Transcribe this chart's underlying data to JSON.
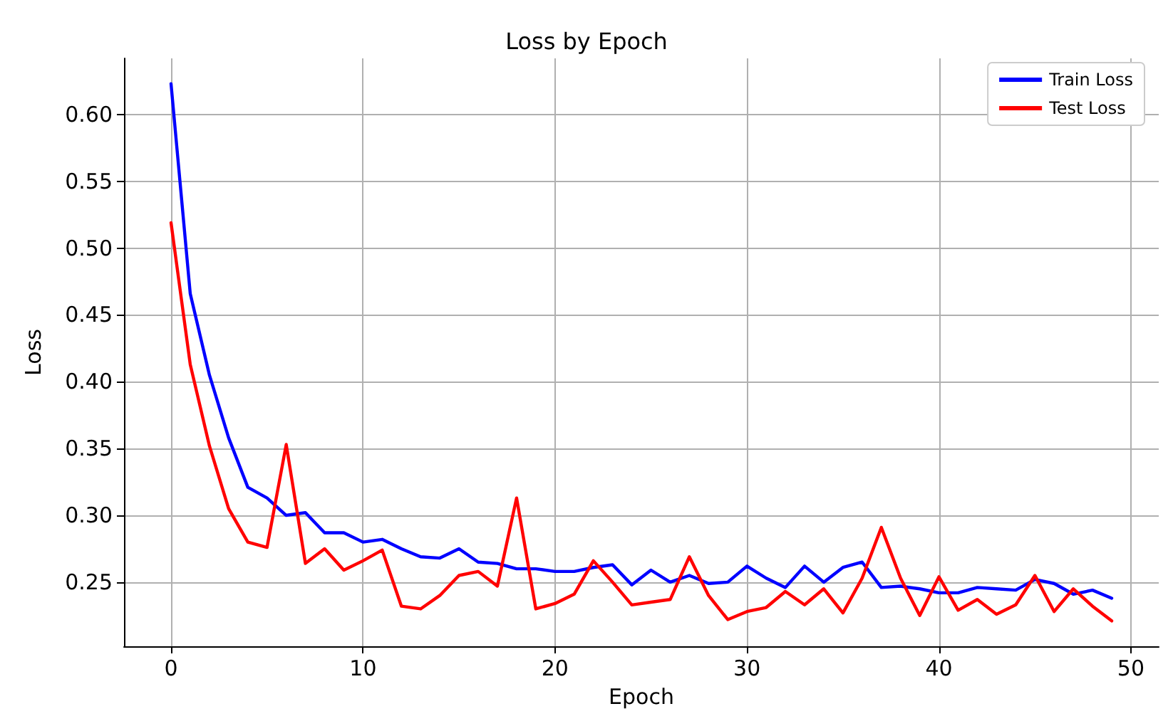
{
  "chart_data": {
    "type": "line",
    "title": "Loss by Epoch",
    "xlabel": "Epoch",
    "ylabel": "Loss",
    "x": [
      0,
      1,
      2,
      3,
      4,
      5,
      6,
      7,
      8,
      9,
      10,
      11,
      12,
      13,
      14,
      15,
      16,
      17,
      18,
      19,
      20,
      21,
      22,
      23,
      24,
      25,
      26,
      27,
      28,
      29,
      30,
      31,
      32,
      33,
      34,
      35,
      36,
      37,
      38,
      39,
      40,
      41,
      42,
      43,
      44,
      45,
      46,
      47,
      48,
      49
    ],
    "series": [
      {
        "name": "Train Loss",
        "color": "#0000ff",
        "values": [
          0.623,
          0.466,
          0.405,
          0.358,
          0.321,
          0.313,
          0.3,
          0.302,
          0.287,
          0.287,
          0.28,
          0.282,
          0.275,
          0.269,
          0.268,
          0.275,
          0.265,
          0.264,
          0.26,
          0.26,
          0.258,
          0.258,
          0.261,
          0.263,
          0.248,
          0.259,
          0.25,
          0.255,
          0.249,
          0.25,
          0.262,
          0.253,
          0.246,
          0.262,
          0.25,
          0.261,
          0.265,
          0.246,
          0.247,
          0.245,
          0.242,
          0.242,
          0.246,
          0.245,
          0.244,
          0.252,
          0.249,
          0.241,
          0.244,
          0.238
        ]
      },
      {
        "name": "Test Loss",
        "color": "#ff0000",
        "values": [
          0.519,
          0.413,
          0.352,
          0.305,
          0.28,
          0.276,
          0.353,
          0.264,
          0.275,
          0.259,
          0.266,
          0.274,
          0.232,
          0.23,
          0.24,
          0.255,
          0.258,
          0.247,
          0.313,
          0.23,
          0.234,
          0.241,
          0.266,
          0.25,
          0.233,
          0.235,
          0.237,
          0.269,
          0.24,
          0.222,
          0.228,
          0.231,
          0.243,
          0.233,
          0.245,
          0.227,
          0.253,
          0.291,
          0.253,
          0.225,
          0.254,
          0.229,
          0.237,
          0.226,
          0.233,
          0.255,
          0.228,
          0.245,
          0.232,
          0.221
        ]
      }
    ],
    "xlim": [
      -2.45,
      51.45
    ],
    "xticks": [
      0,
      10,
      20,
      30,
      40,
      50
    ],
    "ylim": [
      0.202,
      0.642
    ],
    "yticks": [
      {
        "value": 0.25,
        "label": "0.25"
      },
      {
        "value": 0.3,
        "label": "0.30"
      },
      {
        "value": 0.35,
        "label": "0.35"
      },
      {
        "value": 0.4,
        "label": "0.40"
      },
      {
        "value": 0.45,
        "label": "0.45"
      },
      {
        "value": 0.5,
        "label": "0.50"
      },
      {
        "value": 0.55,
        "label": "0.55"
      },
      {
        "value": 0.6,
        "label": "0.60"
      }
    ],
    "grid": true,
    "legend": "top right",
    "marker": "none",
    "line_style": "solid"
  }
}
